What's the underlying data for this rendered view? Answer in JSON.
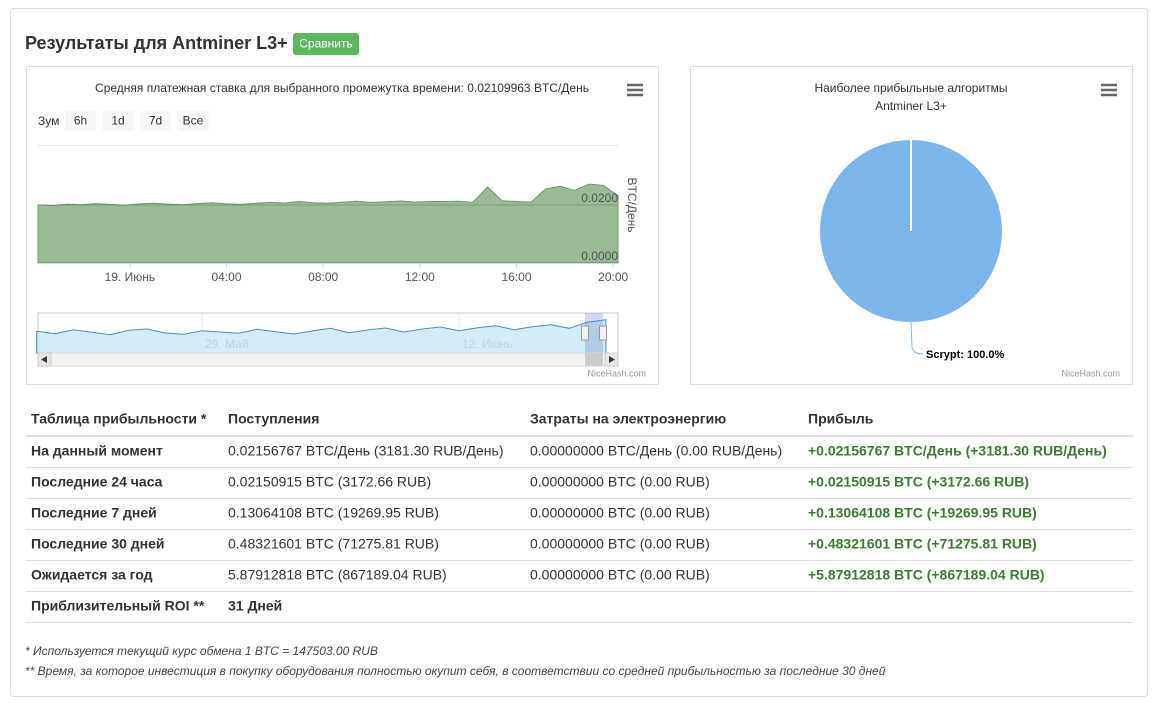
{
  "header": {
    "title": "Результаты для Antminer L3+",
    "button": "Сравнить"
  },
  "chart_data": [
    {
      "type": "area",
      "title": "Средняя платежная ставка для выбранного промежутка времени: 0.02109963 BTC/День",
      "zoom": {
        "label": "Зум",
        "buttons": [
          "6h",
          "1d",
          "7d",
          "Все"
        ]
      },
      "ylabel": "BTC/День",
      "color": "#9bbb97",
      "line_color": "#6f9a6a",
      "x": [
        -3.8,
        -3.2,
        -2.6,
        -2,
        -1.4,
        -0.8,
        -0.2,
        0.4,
        1,
        1.6,
        2.2,
        2.8,
        3.4,
        4,
        4.6,
        5.2,
        5.8,
        6.4,
        7,
        7.6,
        8.2,
        8.8,
        9.4,
        10,
        10.6,
        11.2,
        11.8,
        12.4,
        13,
        13.6,
        14.2,
        14.8,
        15.4,
        16,
        16.6,
        17.2,
        17.8,
        18.4,
        19,
        19.6,
        20.2
      ],
      "values": [
        0.02,
        0.0198,
        0.0203,
        0.0201,
        0.0205,
        0.0202,
        0.0199,
        0.0204,
        0.0206,
        0.0203,
        0.0201,
        0.0205,
        0.0208,
        0.0204,
        0.0202,
        0.0206,
        0.0209,
        0.0207,
        0.0212,
        0.0208,
        0.0206,
        0.021,
        0.0213,
        0.0209,
        0.0211,
        0.0214,
        0.021,
        0.0212,
        0.0212,
        0.0213,
        0.0209,
        0.0262,
        0.0215,
        0.0212,
        0.021,
        0.0255,
        0.0265,
        0.025,
        0.0272,
        0.0268,
        0.0232
      ],
      "xlim": [
        -3.8,
        20.2
      ],
      "xticks": [
        {
          "value": 0,
          "label": "19. Июнь"
        },
        {
          "value": 4,
          "label": "04:00"
        },
        {
          "value": 8,
          "label": "08:00"
        },
        {
          "value": 12,
          "label": "12:00"
        },
        {
          "value": 16,
          "label": "16:00"
        },
        {
          "value": 20,
          "label": "20:00"
        }
      ],
      "ylim": [
        0,
        0.0407
      ],
      "yticks": [
        {
          "value": 0,
          "label": "0.0000"
        },
        {
          "value": 0.02,
          "label": "0.0200"
        }
      ],
      "grid": true,
      "navigator": {
        "color": "#c9e6f2",
        "line_color": "#4a8fc4",
        "x": [
          -9,
          -8,
          -7,
          -6,
          -5,
          -4,
          -3,
          -2,
          -1,
          0,
          1,
          2,
          3,
          4,
          5,
          6,
          7,
          8,
          9,
          10,
          11,
          12,
          13,
          14,
          15,
          16,
          17,
          18,
          19,
          20,
          21,
          22
        ],
        "values": [
          0.0205,
          0.0198,
          0.021,
          0.0202,
          0.0195,
          0.0208,
          0.0212,
          0.02,
          0.0196,
          0.0207,
          0.0203,
          0.0199,
          0.0211,
          0.0204,
          0.0197,
          0.0206,
          0.0214,
          0.0201,
          0.0209,
          0.0215,
          0.0203,
          0.0212,
          0.0218,
          0.0207,
          0.0216,
          0.0222,
          0.021,
          0.0219,
          0.0225,
          0.0214,
          0.0232,
          0.024
        ],
        "xlim": [
          -8.93,
          22.66
        ],
        "ylim": [
          0.014,
          0.026
        ],
        "xticks": [
          {
            "value": 0,
            "label": "29. Май"
          },
          {
            "value": 14,
            "label": "12. Июнь"
          }
        ]
      },
      "credits": "NiceHash.com"
    },
    {
      "type": "pie",
      "title": "Наиболее прибыльные алгоритмы",
      "subtitle": "Antminer L3+",
      "categories": [
        "Scrypt"
      ],
      "values": [
        100
      ],
      "value_labels": [
        "Scrypt: 100.0%"
      ],
      "colors": [
        "#7cb5ec"
      ],
      "credits": "NiceHash.com"
    }
  ],
  "table": {
    "headers": [
      "Таблица прибыльности *",
      "Поступления",
      "Затраты на электроэнергию",
      "Прибыль"
    ],
    "rows": [
      [
        "На данный момент",
        "0.02156767 BTC/День (3181.30 RUB/День)",
        "0.00000000 BTC/День (0.00 RUB/День)",
        "+0.02156767 BTC/День (+3181.30 RUB/День)"
      ],
      [
        "Последние 24 часа",
        "0.02150915 BTC (3172.66 RUB)",
        "0.00000000 BTC (0.00 RUB)",
        "+0.02150915 BTC (+3172.66 RUB)"
      ],
      [
        "Последние 7 дней",
        "0.13064108 BTC (19269.95 RUB)",
        "0.00000000 BTC (0.00 RUB)",
        "+0.13064108 BTC (+19269.95 RUB)"
      ],
      [
        "Последние 30 дней",
        "0.48321601 BTC (71275.81 RUB)",
        "0.00000000 BTC (0.00 RUB)",
        "+0.48321601 BTC (+71275.81 RUB)"
      ],
      [
        "Ожидается за год",
        "5.87912818 BTC (867189.04 RUB)",
        "0.00000000 BTC (0.00 RUB)",
        "+5.87912818 BTC (+867189.04 RUB)"
      ],
      [
        "Приблизительный ROI **",
        "31 Дней"
      ]
    ]
  },
  "footnotes": [
    "* Используется текущий курс обмена 1 BTC = 147503.00 RUB",
    "** Время, за которое инвестиция в покупку оборудования полностью окупит себя, в соответствии со средней прибыльностью за последние 30 дней"
  ]
}
